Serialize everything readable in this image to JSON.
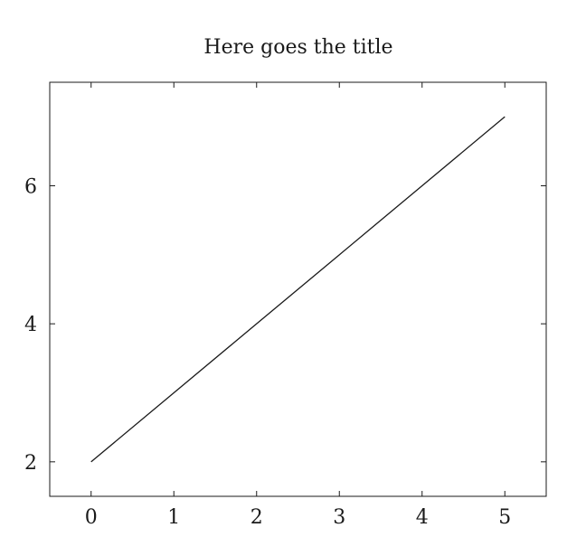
{
  "chart_data": {
    "type": "line",
    "title": "Here goes the title",
    "xlabel": "",
    "ylabel": "",
    "xlim": [
      -0.5,
      5.5
    ],
    "ylim": [
      1.5,
      7.5
    ],
    "x_ticks": [
      0,
      1,
      2,
      3,
      4,
      5
    ],
    "y_ticks": [
      2,
      4,
      6
    ],
    "grid": false,
    "legend": "none",
    "series": [
      {
        "x": [
          0,
          1,
          2,
          3,
          4,
          5
        ],
        "y": [
          2,
          3,
          4,
          5,
          6,
          7
        ],
        "color": "#1a1a1a"
      }
    ]
  }
}
